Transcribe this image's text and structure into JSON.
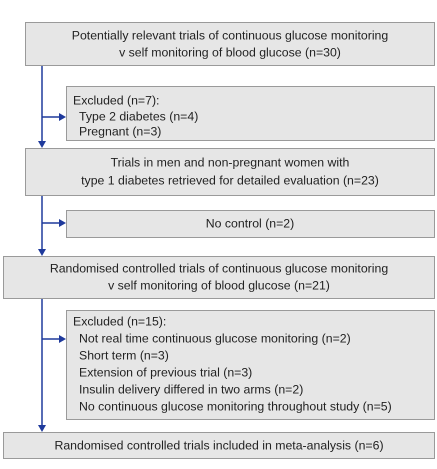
{
  "boxes": [
    {
      "lines": [
        "Potentially relevant trials of continuous glucose monitoring",
        "v self monitoring of blood glucose (n=30)"
      ]
    },
    {
      "title": "Excluded (n=7):",
      "items": [
        "Type 2 diabetes (n=4)",
        "Pregnant (n=3)"
      ]
    },
    {
      "lines": [
        "Trials in men and non-pregnant women with",
        "type 1 diabetes retrieved for detailed evaluation (n=23)"
      ]
    },
    {
      "lines": [
        "No control (n=2)"
      ]
    },
    {
      "lines": [
        "Randomised controlled trials of continuous glucose monitoring",
        "v self monitoring of blood glucose (n=21)"
      ]
    },
    {
      "title": "Excluded (n=15):",
      "items": [
        "Not real time continuous glucose monitoring (n=2)",
        "Short term (n=3)",
        "Extension of previous trial (n=3)",
        "Insulin delivery differed in two arms (n=2)",
        "No continuous glucose monitoring throughout study (n=5)"
      ]
    },
    {
      "lines": [
        "Randomised controlled trials included in meta-analysis (n=6)"
      ]
    }
  ]
}
